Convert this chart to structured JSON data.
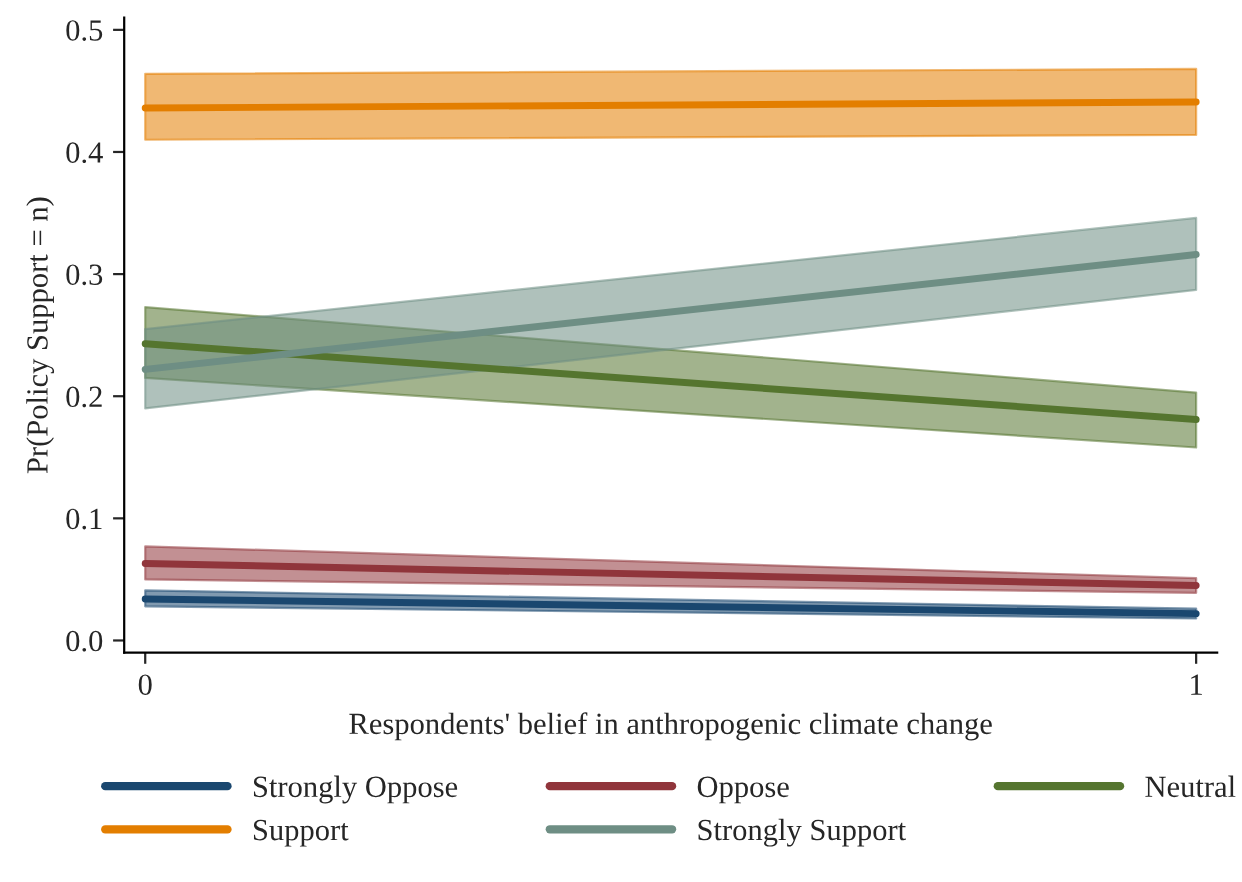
{
  "chart_data": {
    "type": "line",
    "xlabel": "Respondents' belief in anthropogenic climate change",
    "ylabel": "Pr(Policy Support = n)",
    "x": [
      0,
      1
    ],
    "series": [
      {
        "name": "Strongly Oppose",
        "color": "#1a476f",
        "values": [
          0.034,
          0.022
        ],
        "lower": [
          0.028,
          0.018
        ],
        "upper": [
          0.041,
          0.026
        ]
      },
      {
        "name": "Oppose",
        "color": "#90353b",
        "values": [
          0.063,
          0.045
        ],
        "lower": [
          0.05,
          0.039
        ],
        "upper": [
          0.077,
          0.051
        ]
      },
      {
        "name": "Neutral",
        "color": "#55752f",
        "values": [
          0.243,
          0.181
        ],
        "lower": [
          0.215,
          0.158
        ],
        "upper": [
          0.273,
          0.203
        ]
      },
      {
        "name": "Support",
        "color": "#e37e00",
        "values": [
          0.436,
          0.441
        ],
        "lower": [
          0.41,
          0.414
        ],
        "upper": [
          0.464,
          0.468
        ]
      },
      {
        "name": "Strongly Support",
        "color": "#6e8e84",
        "values": [
          0.222,
          0.316
        ],
        "lower": [
          0.19,
          0.287
        ],
        "upper": [
          0.255,
          0.346
        ]
      }
    ],
    "xlim": [
      -0.02,
      1.02
    ],
    "xticks": [
      0,
      1
    ],
    "ylim": [
      -0.01,
      0.51
    ],
    "yticks": [
      {
        "value": 0,
        "label": "0.0"
      },
      {
        "value": 0.1,
        "label": "0.1"
      },
      {
        "value": 0.2,
        "label": "0.2"
      },
      {
        "value": 0.3,
        "label": "0.3"
      },
      {
        "value": 0.4,
        "label": "0.4"
      },
      {
        "value": 0.5,
        "label": "0.5"
      }
    ],
    "grid": false,
    "legend": "bottom",
    "marker": "none",
    "line_style": "solid"
  }
}
